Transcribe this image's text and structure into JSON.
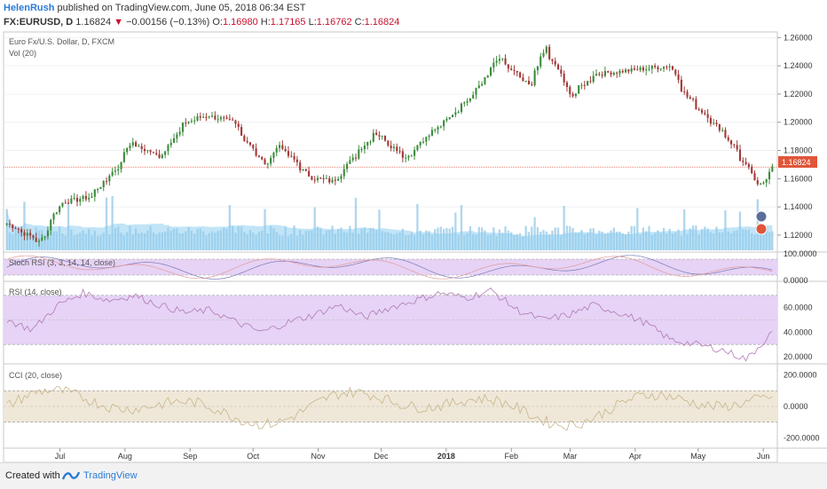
{
  "header": {
    "author": "HelenRush",
    "published_text": "published on TradingView.com, June 05, 2018 06:34 EST",
    "symbol": "FX:EURUSD, D",
    "last": "1.16824",
    "change_arrow": "▼",
    "change": "−0.00156 (−0.13%)",
    "open_label": "O:",
    "open": "1.16980",
    "high_label": "H:",
    "high": "1.17165",
    "low_label": "L:",
    "low": "1.16762",
    "close_label": "C:",
    "close": "1.16824"
  },
  "colors": {
    "up": "#3d8c3d",
    "down": "#a33838",
    "volume": "#7bbbe0",
    "volume_ma": "#8ecdf0",
    "osc_band": "#e6d3f5",
    "cci_band": "#efe8d8",
    "osc_line": "#b07ab3",
    "cci_line": "#c8b48a",
    "price_line": "#e0563a"
  },
  "panes": {
    "main": {
      "title": "Euro Fx/U.S. Dollar, D, FXCM",
      "sub": "Vol (20)",
      "last_label": "1.16824"
    },
    "stoch": {
      "title": "Stoch RSI (3, 3, 14, 14, close)"
    },
    "rsi": {
      "title": "RSI (14, close)"
    },
    "cci": {
      "title": "CCI (20, close)"
    }
  },
  "footer": {
    "created": "Created with",
    "brand": "TradingView"
  },
  "chart_data": [
    {
      "type": "candlestick",
      "title": "Euro Fx/U.S. Dollar, D, FXCM",
      "y_ticks": [
        "1.26000",
        "1.24000",
        "1.22000",
        "1.20000",
        "1.18000",
        "1.16000",
        "1.14000",
        "1.12000"
      ],
      "ylim": [
        1.108,
        1.264
      ],
      "x_ticks": [
        "Jul",
        "Aug",
        "Sep",
        "Oct",
        "Nov",
        "Dec",
        "2018",
        "Feb",
        "Mar",
        "Apr",
        "May",
        "Jun"
      ],
      "last_price": 1.16824,
      "close_path": [
        {
          "date": "2017-06-05",
          "close": 1.128
        },
        {
          "date": "2017-06-20",
          "close": 1.115
        },
        {
          "date": "2017-06-30",
          "close": 1.143
        },
        {
          "date": "2017-07-14",
          "close": 1.147
        },
        {
          "date": "2017-07-27",
          "close": 1.168
        },
        {
          "date": "2017-08-02",
          "close": 1.185
        },
        {
          "date": "2017-08-16",
          "close": 1.176
        },
        {
          "date": "2017-08-29",
          "close": 1.2
        },
        {
          "date": "2017-09-08",
          "close": 1.205
        },
        {
          "date": "2017-09-20",
          "close": 1.2
        },
        {
          "date": "2017-10-06",
          "close": 1.169
        },
        {
          "date": "2017-10-12",
          "close": 1.184
        },
        {
          "date": "2017-10-27",
          "close": 1.161
        },
        {
          "date": "2017-11-07",
          "close": 1.158
        },
        {
          "date": "2017-11-27",
          "close": 1.193
        },
        {
          "date": "2017-12-12",
          "close": 1.175
        },
        {
          "date": "2017-12-29",
          "close": 1.2
        },
        {
          "date": "2018-01-12",
          "close": 1.218
        },
        {
          "date": "2018-01-25",
          "close": 1.245
        },
        {
          "date": "2018-02-09",
          "close": 1.225
        },
        {
          "date": "2018-02-16",
          "close": 1.253
        },
        {
          "date": "2018-03-01",
          "close": 1.219
        },
        {
          "date": "2018-03-12",
          "close": 1.234
        },
        {
          "date": "2018-04-17",
          "close": 1.24
        },
        {
          "date": "2018-04-25",
          "close": 1.218
        },
        {
          "date": "2018-05-14",
          "close": 1.19
        },
        {
          "date": "2018-05-29",
          "close": 1.155
        },
        {
          "date": "2018-06-05",
          "close": 1.168
        }
      ],
      "volume_ma_label": "Vol (20)"
    },
    {
      "type": "line",
      "title": "Stoch RSI (3, 3, 14, 14, close)",
      "y_ticks": [
        "100.0000",
        "0.0000"
      ],
      "ylim": [
        0,
        100
      ]
    },
    {
      "type": "line",
      "title": "RSI (14, close)",
      "y_ticks": [
        "60.0000",
        "40.0000",
        "20.0000"
      ],
      "ylim": [
        15,
        80
      ],
      "band": [
        30,
        70
      ],
      "series": [
        {
          "values": [
            50,
            42,
            62,
            72,
            66,
            70,
            62,
            56,
            58,
            48,
            40,
            48,
            54,
            62,
            52,
            60,
            66,
            72,
            68,
            74,
            58,
            50,
            54,
            62,
            56,
            48,
            34,
            30,
            26,
            18,
            40
          ]
        }
      ]
    },
    {
      "type": "line",
      "title": "CCI (20, close)",
      "y_ticks": [
        "200.0000",
        "0.0000",
        "-200.0000"
      ],
      "ylim": [
        -260,
        260
      ],
      "band": [
        -100,
        100
      ]
    }
  ]
}
